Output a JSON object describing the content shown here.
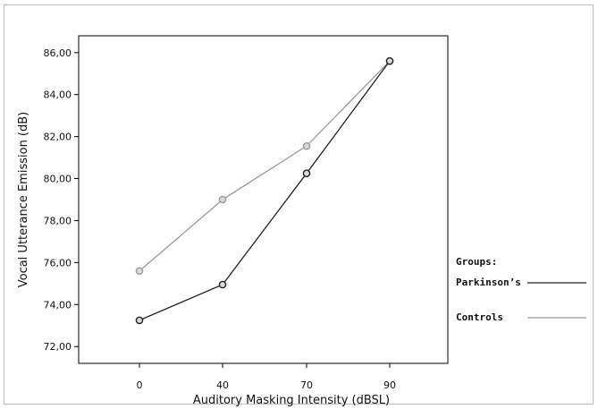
{
  "chart_data": {
    "type": "line",
    "xlabel": "Auditory Masking Intensity (dBSL)",
    "ylabel": "Vocal Utterance Emission (dB)",
    "categories": [
      "0",
      "40",
      "70",
      "90"
    ],
    "y_ticks": [
      "72,00",
      "74,00",
      "76,00",
      "78,00",
      "80,00",
      "82,00",
      "84,00",
      "86,00"
    ],
    "ylim": [
      71.2,
      86.8
    ],
    "legend": {
      "title": "Groups:",
      "placement": "right"
    },
    "series": [
      {
        "name": "Parkinson’s",
        "color": "#222222",
        "values": [
          73.25,
          74.95,
          80.25,
          85.6
        ]
      },
      {
        "name": "Controls",
        "color": "#9a9a9a",
        "values": [
          75.6,
          79.0,
          81.55,
          85.6
        ]
      }
    ],
    "grid": false
  }
}
